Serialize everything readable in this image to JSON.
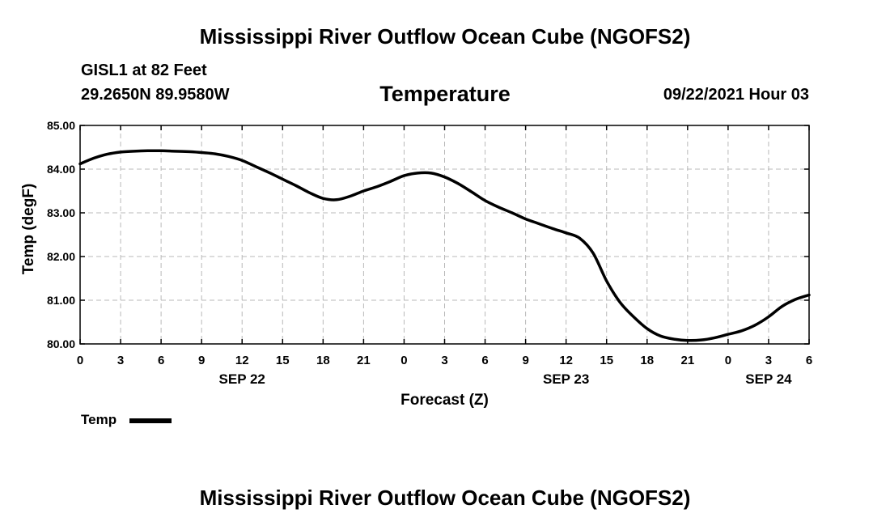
{
  "header": {
    "title": "Mississippi River Outflow Ocean Cube (NGOFS2)",
    "station": "GISL1 at 82 Feet",
    "coords": "29.2650N  89.9580W",
    "variable": "Temperature",
    "datetime": "09/22/2021 Hour 03"
  },
  "footer": {
    "title": "Mississippi River Outflow Ocean Cube (NGOFS2)"
  },
  "legend": {
    "label": "Temp"
  },
  "chart_data": {
    "type": "line",
    "title": "Temperature",
    "xlabel": "Forecast (Z)",
    "ylabel": "Temp (degF)",
    "xlim": [
      0,
      54
    ],
    "ylim": [
      80,
      85
    ],
    "grid": true,
    "legend_position": "bottom-left",
    "x_ticks": [
      0,
      3,
      6,
      9,
      12,
      15,
      18,
      21,
      24,
      27,
      30,
      33,
      36,
      39,
      42,
      45,
      48,
      51,
      54
    ],
    "x_tick_labels": [
      "0",
      "3",
      "6",
      "9",
      "12",
      "15",
      "18",
      "21",
      "0",
      "3",
      "6",
      "9",
      "12",
      "15",
      "18",
      "21",
      "0",
      "3",
      "6"
    ],
    "y_ticks": [
      80,
      81,
      82,
      83,
      84,
      85
    ],
    "y_tick_labels": [
      "80.00",
      "81.00",
      "82.00",
      "83.00",
      "84.00",
      "85.00"
    ],
    "date_labels": [
      {
        "hour": 12,
        "label": "SEP 22"
      },
      {
        "hour": 36,
        "label": "SEP 23"
      },
      {
        "hour": 51,
        "label": "SEP 24"
      }
    ],
    "series": [
      {
        "name": "Temp",
        "color": "#000000",
        "x": [
          0,
          1,
          2,
          3,
          4,
          5,
          6,
          7,
          8,
          9,
          10,
          11,
          12,
          13,
          14,
          15,
          16,
          17,
          18,
          19,
          20,
          21,
          22,
          23,
          24,
          25,
          26,
          27,
          28,
          29,
          30,
          31,
          32,
          33,
          34,
          35,
          36,
          37,
          38,
          39,
          40,
          41,
          42,
          43,
          44,
          45,
          46,
          47,
          48,
          49,
          50,
          51,
          52,
          53,
          54
        ],
        "values": [
          84.12,
          84.25,
          84.34,
          84.39,
          84.41,
          84.42,
          84.42,
          84.41,
          84.4,
          84.38,
          84.35,
          84.29,
          84.2,
          84.06,
          83.92,
          83.77,
          83.62,
          83.46,
          83.33,
          83.3,
          83.38,
          83.5,
          83.6,
          83.72,
          83.85,
          83.91,
          83.91,
          83.82,
          83.67,
          83.48,
          83.28,
          83.13,
          83.0,
          82.86,
          82.75,
          82.64,
          82.54,
          82.42,
          82.08,
          81.44,
          80.95,
          80.62,
          80.35,
          80.18,
          80.11,
          80.08,
          80.09,
          80.14,
          80.22,
          80.3,
          80.43,
          80.62,
          80.86,
          81.02,
          81.12
        ]
      }
    ]
  }
}
